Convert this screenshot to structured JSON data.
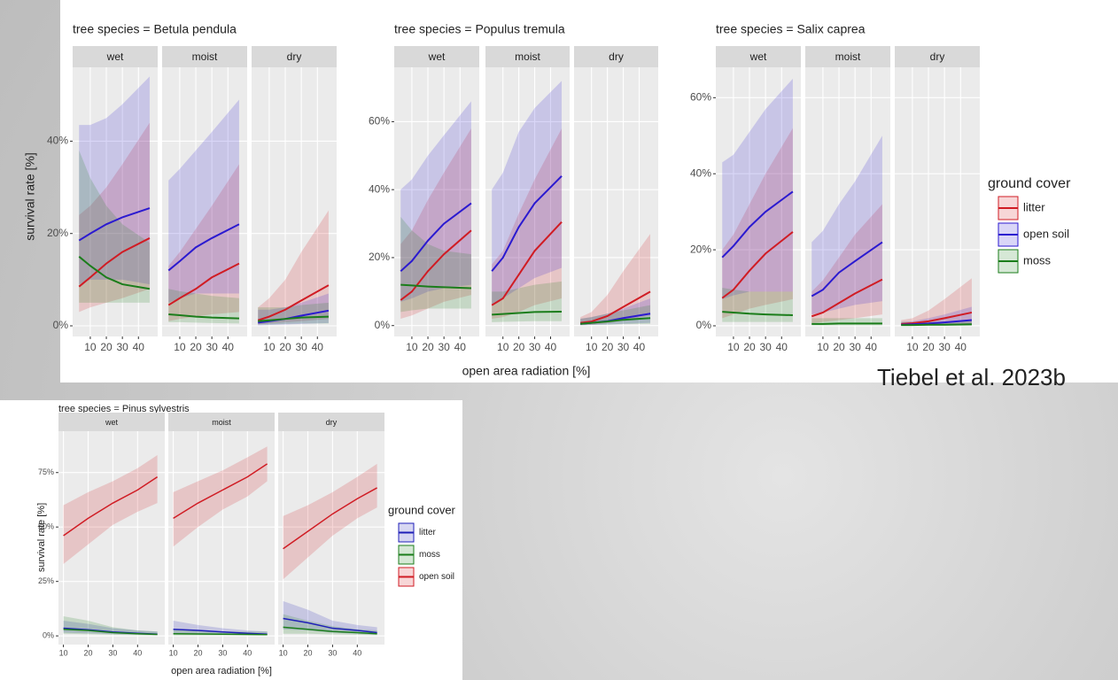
{
  "annotation": "Tiebel et al.  2023b",
  "chart_data": [
    {
      "type": "line",
      "title": "tree species = Betula pendula",
      "ylabel": "survival rate [%]",
      "x": [
        3,
        10,
        20,
        30,
        47
      ],
      "xlim": [
        -1,
        52
      ],
      "xticks": [
        10,
        20,
        30,
        40
      ],
      "ylim": [
        -2.3,
        56
      ],
      "yticks": [
        {
          "value": 0,
          "label": "0%"
        },
        {
          "value": 20,
          "label": "20%"
        },
        {
          "value": 40,
          "label": "40%"
        }
      ],
      "grid": true,
      "series": [
        {
          "color": "#d01c24"
        },
        {
          "color": "#2b1ad0"
        },
        {
          "color": "#1b7d1b"
        }
      ],
      "facets": [
        {
          "label": "wet",
          "values": [
            [
              8.5,
              10.5,
              13.5,
              16,
              19
            ],
            [
              18.5,
              20,
              22,
              23.5,
              25.5
            ],
            [
              15,
              13,
              10.5,
              9,
              8
            ]
          ],
          "lower": [
            [
              3,
              4,
              5,
              6,
              8
            ],
            [
              9,
              10,
              10,
              10,
              9
            ],
            [
              5,
              5,
              5,
              5,
              5
            ]
          ],
          "upper": [
            [
              24,
              26,
              30,
              35,
              44
            ],
            [
              43.5,
              43.5,
              45,
              48,
              54
            ],
            [
              38,
              32,
              26,
              22,
              18
            ]
          ]
        },
        {
          "label": "moist",
          "values": [
            [
              4.5,
              6,
              8,
              10.5,
              13.5
            ],
            [
              12,
              14,
              17,
              19,
              22
            ],
            [
              2.5,
              2.3,
              2,
              1.8,
              1.6
            ]
          ],
          "lower": [
            [
              1,
              1.5,
              2,
              2.5,
              3
            ],
            [
              5,
              6,
              7,
              7,
              7
            ],
            [
              0.8,
              0.8,
              0.7,
              0.6,
              0.5
            ]
          ],
          "upper": [
            [
              13,
              16,
              21,
              26,
              35
            ],
            [
              31.5,
              34,
              38,
              42,
              49
            ],
            [
              8,
              7.5,
              7,
              6.5,
              6
            ]
          ]
        },
        {
          "label": "dry",
          "values": [
            [
              1.2,
              2,
              3.5,
              5.5,
              8.8
            ],
            [
              0.7,
              1,
              1.5,
              2.2,
              3.3
            ],
            [
              1,
              1.2,
              1.5,
              1.8,
              2
            ]
          ],
          "lower": [
            [
              0.3,
              0.5,
              0.8,
              1,
              1.5
            ],
            [
              0.1,
              0.2,
              0.3,
              0.4,
              0.6
            ],
            [
              0.3,
              0.3,
              0.4,
              0.5,
              0.5
            ]
          ],
          "upper": [
            [
              4,
              6,
              10,
              16,
              25
            ],
            [
              3.5,
              3.5,
              4,
              5,
              7
            ],
            [
              4,
              4,
              4,
              4.5,
              5
            ]
          ]
        }
      ]
    },
    {
      "type": "line",
      "title": "tree species = Populus tremula",
      "xlabel": "open area radiation [%]",
      "x": [
        3,
        10,
        20,
        30,
        47
      ],
      "xlim": [
        -1,
        52
      ],
      "xticks": [
        10,
        20,
        30,
        40
      ],
      "ylim": [
        -3.2,
        76
      ],
      "yticks": [
        {
          "value": 0,
          "label": "0%"
        },
        {
          "value": 20,
          "label": "20%"
        },
        {
          "value": 40,
          "label": "40%"
        },
        {
          "value": 60,
          "label": "60%"
        }
      ],
      "grid": true,
      "series": [
        {
          "color": "#d01c24"
        },
        {
          "color": "#2b1ad0"
        },
        {
          "color": "#1b7d1b"
        }
      ],
      "facets": [
        {
          "label": "wet",
          "values": [
            [
              7.5,
              10,
              16,
              21,
              28
            ],
            [
              16,
              19,
              25,
              30,
              36
            ],
            [
              12,
              11.8,
              11.5,
              11.3,
              11
            ]
          ],
          "lower": [
            [
              2,
              3,
              5,
              7,
              9
            ],
            [
              7,
              8,
              10,
              11,
              12
            ],
            [
              4,
              4.5,
              5,
              5,
              5
            ]
          ],
          "upper": [
            [
              24,
              28,
              37,
              45,
              58
            ],
            [
              40,
              43,
              50,
              56,
              66
            ],
            [
              32,
              28,
              24,
              22,
              21
            ]
          ]
        },
        {
          "label": "moist",
          "values": [
            [
              6,
              8,
              15,
              22,
              30.5
            ],
            [
              16,
              20,
              29,
              36,
              44
            ],
            [
              3.2,
              3.4,
              3.7,
              4,
              4.1
            ]
          ],
          "lower": [
            [
              2,
              2.5,
              4,
              6,
              8
            ],
            [
              6,
              8,
              11,
              14,
              17
            ],
            [
              1,
              1.1,
              1.2,
              1.3,
              1.3
            ]
          ],
          "upper": [
            [
              18,
              22,
              33,
              43,
              58
            ],
            [
              40,
              45,
              57,
              64,
              72
            ],
            [
              10,
              10,
              11,
              12,
              13
            ]
          ]
        },
        {
          "label": "dry",
          "values": [
            [
              0.8,
              1.2,
              2.8,
              5.5,
              10
            ],
            [
              0.5,
              0.8,
              1.3,
              2.2,
              3.5
            ],
            [
              0.5,
              0.8,
              1.2,
              1.7,
              2.2
            ]
          ],
          "lower": [
            [
              0.2,
              0.3,
              0.7,
              1.5,
              3
            ],
            [
              0.1,
              0.2,
              0.3,
              0.5,
              0.8
            ],
            [
              0.1,
              0.2,
              0.3,
              0.4,
              0.5
            ]
          ],
          "upper": [
            [
              2.5,
              4,
              9,
              16,
              27
            ],
            [
              2,
              2.5,
              3.5,
              5,
              8
            ],
            [
              2,
              2.5,
              3.5,
              4.5,
              6
            ]
          ]
        }
      ]
    },
    {
      "type": "line",
      "title": "tree species = Salix caprea",
      "legend_title": "ground cover",
      "x": [
        3,
        10,
        20,
        30,
        47
      ],
      "xlim": [
        -1,
        52
      ],
      "xticks": [
        10,
        20,
        30,
        40
      ],
      "ylim": [
        -2.8,
        68
      ],
      "yticks": [
        {
          "value": 0,
          "label": "0%"
        },
        {
          "value": 20,
          "label": "20%"
        },
        {
          "value": 40,
          "label": "40%"
        },
        {
          "value": 60,
          "label": "60%"
        }
      ],
      "grid": true,
      "series": [
        {
          "name": "litter",
          "color": "#d01c24"
        },
        {
          "name": "open soil",
          "color": "#2b1ad0"
        },
        {
          "name": "moss",
          "color": "#1b7d1b"
        }
      ],
      "facets": [
        {
          "label": "wet",
          "values": [
            [
              7.3,
              9.5,
              14.5,
              19,
              24.7
            ],
            [
              18,
              21,
              26,
              30,
              35.3
            ],
            [
              3.7,
              3.5,
              3.2,
              3,
              2.8
            ]
          ],
          "lower": [
            [
              2,
              3,
              4.5,
              5.5,
              7
            ],
            [
              7,
              8,
              9,
              9,
              9
            ],
            [
              1,
              1,
              1,
              1,
              1
            ]
          ],
          "upper": [
            [
              20,
              24,
              32,
              40,
              52
            ],
            [
              43,
              45,
              51,
              57,
              65
            ],
            [
              10,
              9.5,
              9,
              9,
              9
            ]
          ]
        },
        {
          "label": "moist",
          "values": [
            [
              2.5,
              3.5,
              6,
              8.5,
              12.2
            ],
            [
              7.8,
              9.5,
              14,
              17,
              22
            ],
            [
              0.5,
              0.5,
              0.6,
              0.6,
              0.6
            ]
          ],
          "lower": [
            [
              0.7,
              1,
              1.5,
              2,
              3
            ],
            [
              3,
              3.5,
              4.5,
              5.5,
              6.5
            ],
            [
              0.1,
              0.1,
              0.1,
              0.1,
              0.1
            ]
          ],
          "upper": [
            [
              9,
              12,
              18,
              24,
              32
            ],
            [
              22,
              25,
              32,
              38,
              50
            ],
            [
              2,
              2,
              2,
              2,
              2
            ]
          ]
        },
        {
          "label": "dry",
          "values": [
            [
              0.5,
              0.7,
              1.2,
              2,
              3.5
            ],
            [
              0.3,
              0.4,
              0.6,
              0.9,
              1.5
            ],
            [
              0.2,
              0.2,
              0.3,
              0.3,
              0.4
            ]
          ],
          "lower": [
            [
              0.1,
              0.1,
              0.2,
              0.3,
              0.5
            ],
            [
              0,
              0,
              0.1,
              0.1,
              0.2
            ],
            [
              0,
              0,
              0,
              0,
              0
            ]
          ],
          "upper": [
            [
              1.5,
              2,
              4,
              7,
              12.5
            ],
            [
              1,
              1.2,
              2,
              3,
              5
            ],
            [
              1,
              1,
              1,
              1,
              1.5
            ]
          ]
        }
      ]
    },
    {
      "type": "line",
      "title": "tree species = Pinus sylvestris",
      "ylabel": "survival rate [%]",
      "xlabel": "open area radiation [%]",
      "legend_title": "ground cover",
      "x": [
        10,
        20,
        30,
        40,
        48
      ],
      "xlim": [
        8,
        51
      ],
      "xticks": [
        10,
        20,
        30,
        40
      ],
      "ylim": [
        -4,
        94
      ],
      "yticks": [
        {
          "value": 0,
          "label": "0%"
        },
        {
          "value": 25,
          "label": "25%"
        },
        {
          "value": 50,
          "label": "50%"
        },
        {
          "value": 75,
          "label": "75%"
        }
      ],
      "grid": true,
      "series": [
        {
          "name": "litter",
          "color": "#1f1fb8"
        },
        {
          "name": "moss",
          "color": "#1b7d1b"
        },
        {
          "name": "open soil",
          "color": "#d01c24"
        }
      ],
      "facets": [
        {
          "label": "wet",
          "values": [
            [
              3.5,
              2.8,
              1.8,
              1.2,
              0.8
            ],
            [
              3,
              2.5,
              1.5,
              1,
              0.7
            ],
            [
              46,
              54,
              61,
              67,
              73
            ]
          ],
          "lower": [
            [
              1.5,
              1.2,
              0.8,
              0.5,
              0.3
            ],
            [
              1,
              0.8,
              0.5,
              0.3,
              0.2
            ],
            [
              33,
              42,
              51,
              57,
              61
            ]
          ],
          "upper": [
            [
              7,
              5.5,
              3.5,
              2.5,
              2
            ],
            [
              9,
              7,
              4,
              2.5,
              2
            ],
            [
              60,
              66,
              71,
              77,
              83
            ]
          ]
        },
        {
          "label": "moist",
          "values": [
            [
              3,
              2.5,
              1.8,
              1.2,
              0.8
            ],
            [
              1,
              0.9,
              0.8,
              0.7,
              0.6
            ],
            [
              54,
              61,
              67,
              73,
              79
            ]
          ],
          "lower": [
            [
              1,
              0.8,
              0.6,
              0.4,
              0.3
            ],
            [
              0.2,
              0.2,
              0.2,
              0.2,
              0.2
            ],
            [
              41,
              50,
              58,
              64,
              71
            ]
          ],
          "upper": [
            [
              7,
              5,
              3.5,
              2.5,
              2
            ],
            [
              3,
              2.5,
              2,
              2,
              2
            ],
            [
              66,
              71,
              76,
              82,
              87
            ]
          ]
        },
        {
          "label": "dry",
          "values": [
            [
              8,
              6,
              3.5,
              2.5,
              1.5
            ],
            [
              4,
              3,
              2,
              1.5,
              1
            ],
            [
              40,
              48,
              56,
              63,
              68
            ]
          ],
          "lower": [
            [
              3,
              2.5,
              1.5,
              1,
              0.5
            ],
            [
              1,
              1,
              0.7,
              0.5,
              0.3
            ],
            [
              26,
              36,
              46,
              54,
              59
            ]
          ],
          "upper": [
            [
              16,
              12,
              7,
              5,
              4
            ],
            [
              10,
              7,
              4.5,
              3,
              2.5
            ],
            [
              55,
              60,
              66,
              73,
              79
            ]
          ]
        }
      ]
    }
  ]
}
